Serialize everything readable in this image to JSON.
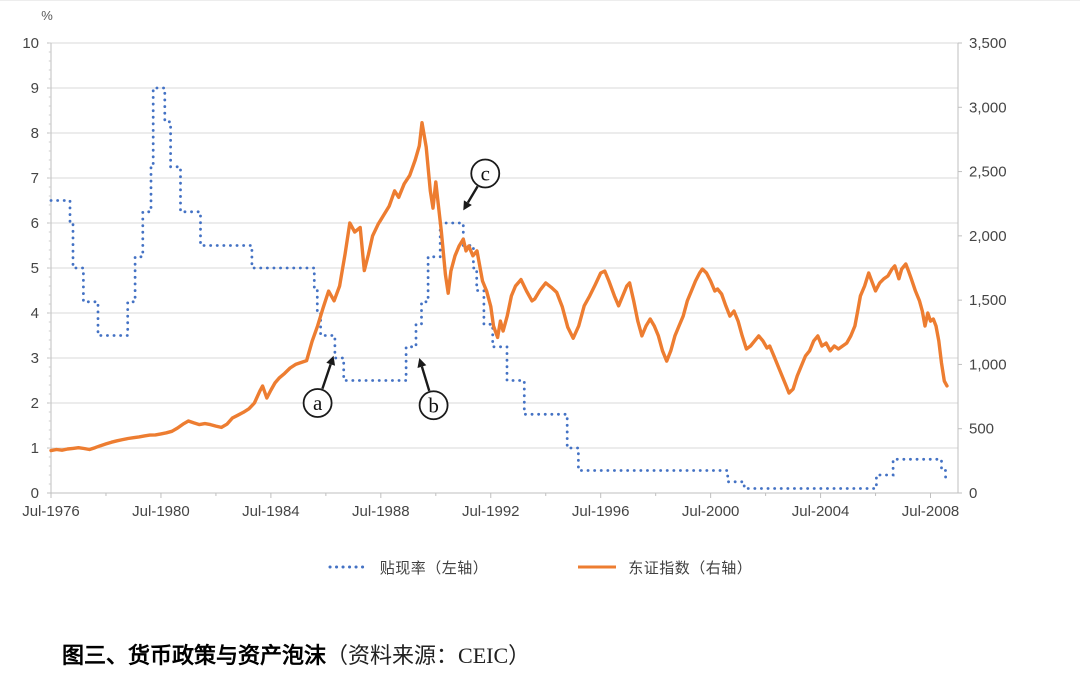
{
  "caption": {
    "title": "图三、货币政策与资产泡沫",
    "source": "（资料来源：CEIC）"
  },
  "legend": {
    "items": [
      {
        "label": "贴现率（左轴）",
        "color": "#4472c4",
        "style": "dotted"
      },
      {
        "label": "东证指数（右轴）",
        "color": "#ed7d31",
        "style": "solid"
      }
    ]
  },
  "chart_data": {
    "type": "line",
    "title": "",
    "grid": {
      "show_horizontal": true,
      "color": "#d9d9d9",
      "axis_color": "#bfbfbf"
    },
    "text_color": "#454545",
    "x_axis": {
      "range": [
        1976.5,
        2009.5
      ],
      "tick_labels": [
        "Jul-1976",
        "Jul-1980",
        "Jul-1984",
        "Jul-1988",
        "Jul-1992",
        "Jul-1996",
        "Jul-2000",
        "Jul-2004",
        "Jul-2008"
      ],
      "tick_values": [
        1976.5,
        1980.5,
        1984.5,
        1988.5,
        1992.5,
        1996.5,
        2000.5,
        2004.5,
        2008.5
      ],
      "minor_tick_values": [
        1978.5,
        1982.5,
        1986.5,
        1990.5,
        1994.5,
        1998.5,
        2002.5,
        2006.5
      ]
    },
    "left_axis": {
      "unit_label": "%",
      "range": [
        0,
        10
      ],
      "tick_step": 1,
      "minor_tick_step": 0.2,
      "tick_labels": [
        "0",
        "1",
        "2",
        "3",
        "4",
        "5",
        "6",
        "7",
        "8",
        "9",
        "10"
      ]
    },
    "right_axis": {
      "range": [
        0,
        3500
      ],
      "tick_step": 500,
      "tick_labels": [
        "0",
        "500",
        "1,000",
        "1,500",
        "2,000",
        "2,500",
        "3,000",
        "3,500"
      ]
    },
    "series": [
      {
        "name": "贴现率（左轴）",
        "axis": "left",
        "draw": "step",
        "line_style": "dotted",
        "color": "#4472c4",
        "points": [
          [
            1976.5,
            6.5
          ],
          [
            1977.19,
            6.0
          ],
          [
            1977.3,
            5.0
          ],
          [
            1977.68,
            4.25
          ],
          [
            1978.21,
            3.5
          ],
          [
            1979.29,
            4.25
          ],
          [
            1979.56,
            5.25
          ],
          [
            1979.84,
            6.25
          ],
          [
            1980.14,
            7.25
          ],
          [
            1980.22,
            9.0
          ],
          [
            1980.64,
            8.25
          ],
          [
            1980.85,
            7.25
          ],
          [
            1981.21,
            6.25
          ],
          [
            1981.94,
            5.5
          ],
          [
            1983.81,
            5.0
          ],
          [
            1986.08,
            4.5
          ],
          [
            1986.19,
            4.0
          ],
          [
            1986.31,
            3.5
          ],
          [
            1986.83,
            3.0
          ],
          [
            1987.15,
            2.5
          ],
          [
            1989.42,
            3.25
          ],
          [
            1989.78,
            3.75
          ],
          [
            1989.98,
            4.25
          ],
          [
            1990.22,
            5.25
          ],
          [
            1990.66,
            6.0
          ],
          [
            1991.5,
            5.5
          ],
          [
            1991.87,
            5.0
          ],
          [
            1991.99,
            4.5
          ],
          [
            1992.25,
            3.75
          ],
          [
            1992.57,
            3.25
          ],
          [
            1993.09,
            2.5
          ],
          [
            1993.72,
            1.75
          ],
          [
            1995.28,
            1.0
          ],
          [
            1995.69,
            0.5
          ],
          [
            2001.12,
            0.25
          ],
          [
            2001.72,
            0.1
          ],
          [
            2006.53,
            0.4
          ],
          [
            2007.14,
            0.75
          ],
          [
            2008.9,
            0.5
          ],
          [
            2009.05,
            0.3
          ],
          [
            2009.15,
            0.3
          ]
        ]
      },
      {
        "name": "东证指数（右轴）",
        "axis": "right",
        "draw": "line",
        "line_style": "solid",
        "color": "#ed7d31",
        "points": [
          [
            1976.5,
            330
          ],
          [
            1976.7,
            338
          ],
          [
            1976.9,
            333
          ],
          [
            1977.1,
            342
          ],
          [
            1977.3,
            347
          ],
          [
            1977.5,
            352
          ],
          [
            1977.7,
            346
          ],
          [
            1977.9,
            338
          ],
          [
            1978.1,
            352
          ],
          [
            1978.3,
            368
          ],
          [
            1978.5,
            382
          ],
          [
            1978.7,
            395
          ],
          [
            1978.9,
            406
          ],
          [
            1979.1,
            415
          ],
          [
            1979.3,
            424
          ],
          [
            1979.5,
            430
          ],
          [
            1979.7,
            436
          ],
          [
            1979.9,
            444
          ],
          [
            1980.1,
            450
          ],
          [
            1980.3,
            452
          ],
          [
            1980.5,
            460
          ],
          [
            1980.7,
            468
          ],
          [
            1980.9,
            480
          ],
          [
            1981.1,
            505
          ],
          [
            1981.3,
            535
          ],
          [
            1981.5,
            560
          ],
          [
            1981.7,
            545
          ],
          [
            1981.9,
            532
          ],
          [
            1982.1,
            540
          ],
          [
            1982.3,
            532
          ],
          [
            1982.5,
            520
          ],
          [
            1982.7,
            510
          ],
          [
            1982.9,
            535
          ],
          [
            1983.1,
            583
          ],
          [
            1983.3,
            605
          ],
          [
            1983.5,
            628
          ],
          [
            1983.7,
            655
          ],
          [
            1983.9,
            700
          ],
          [
            1984.1,
            794
          ],
          [
            1984.2,
            832
          ],
          [
            1984.35,
            739
          ],
          [
            1984.5,
            800
          ],
          [
            1984.65,
            856
          ],
          [
            1984.8,
            894
          ],
          [
            1985.0,
            930
          ],
          [
            1985.2,
            972
          ],
          [
            1985.4,
            1000
          ],
          [
            1985.6,
            1015
          ],
          [
            1985.8,
            1030
          ],
          [
            1986.0,
            1180
          ],
          [
            1986.2,
            1300
          ],
          [
            1986.4,
            1440
          ],
          [
            1986.6,
            1570
          ],
          [
            1986.8,
            1495
          ],
          [
            1987.0,
            1610
          ],
          [
            1987.2,
            1860
          ],
          [
            1987.37,
            2100
          ],
          [
            1987.55,
            2030
          ],
          [
            1987.75,
            2065
          ],
          [
            1987.9,
            1730
          ],
          [
            1988.05,
            1855
          ],
          [
            1988.2,
            2000
          ],
          [
            1988.4,
            2090
          ],
          [
            1988.6,
            2160
          ],
          [
            1988.8,
            2230
          ],
          [
            1989.0,
            2350
          ],
          [
            1989.15,
            2300
          ],
          [
            1989.35,
            2405
          ],
          [
            1989.55,
            2470
          ],
          [
            1989.75,
            2590
          ],
          [
            1989.9,
            2700
          ],
          [
            1990.0,
            2880
          ],
          [
            1990.15,
            2690
          ],
          [
            1990.3,
            2350
          ],
          [
            1990.4,
            2216
          ],
          [
            1990.5,
            2420
          ],
          [
            1990.6,
            2230
          ],
          [
            1990.7,
            2037
          ],
          [
            1990.85,
            1700
          ],
          [
            1990.95,
            1554
          ],
          [
            1991.05,
            1726
          ],
          [
            1991.2,
            1845
          ],
          [
            1991.35,
            1921
          ],
          [
            1991.5,
            1974
          ],
          [
            1991.6,
            1883
          ],
          [
            1991.7,
            1921
          ],
          [
            1991.85,
            1845
          ],
          [
            1992.0,
            1883
          ],
          [
            1992.1,
            1764
          ],
          [
            1992.2,
            1649
          ],
          [
            1992.35,
            1571
          ],
          [
            1992.5,
            1450
          ],
          [
            1992.6,
            1299
          ],
          [
            1992.75,
            1210
          ],
          [
            1992.85,
            1337
          ],
          [
            1992.95,
            1260
          ],
          [
            1993.1,
            1376
          ],
          [
            1993.25,
            1533
          ],
          [
            1993.4,
            1610
          ],
          [
            1993.6,
            1660
          ],
          [
            1993.8,
            1571
          ],
          [
            1994.0,
            1494
          ],
          [
            1994.1,
            1509
          ],
          [
            1994.3,
            1580
          ],
          [
            1994.5,
            1634
          ],
          [
            1994.7,
            1600
          ],
          [
            1994.9,
            1560
          ],
          [
            1995.1,
            1450
          ],
          [
            1995.3,
            1290
          ],
          [
            1995.5,
            1204
          ],
          [
            1995.7,
            1300
          ],
          [
            1995.9,
            1456
          ],
          [
            1996.1,
            1533
          ],
          [
            1996.3,
            1620
          ],
          [
            1996.5,
            1711
          ],
          [
            1996.65,
            1726
          ],
          [
            1996.8,
            1649
          ],
          [
            1997.0,
            1533
          ],
          [
            1997.15,
            1456
          ],
          [
            1997.3,
            1533
          ],
          [
            1997.45,
            1610
          ],
          [
            1997.55,
            1634
          ],
          [
            1997.7,
            1494
          ],
          [
            1997.85,
            1337
          ],
          [
            1998.0,
            1222
          ],
          [
            1998.15,
            1299
          ],
          [
            1998.3,
            1353
          ],
          [
            1998.45,
            1299
          ],
          [
            1998.6,
            1222
          ],
          [
            1998.75,
            1106
          ],
          [
            1998.9,
            1026
          ],
          [
            1999.05,
            1106
          ],
          [
            1999.2,
            1222
          ],
          [
            1999.35,
            1299
          ],
          [
            1999.5,
            1376
          ],
          [
            1999.65,
            1494
          ],
          [
            1999.8,
            1571
          ],
          [
            1999.95,
            1649
          ],
          [
            2000.1,
            1711
          ],
          [
            2000.2,
            1742
          ],
          [
            2000.35,
            1711
          ],
          [
            2000.5,
            1649
          ],
          [
            2000.65,
            1571
          ],
          [
            2000.75,
            1587
          ],
          [
            2000.9,
            1548
          ],
          [
            2001.05,
            1456
          ],
          [
            2001.2,
            1376
          ],
          [
            2001.35,
            1415
          ],
          [
            2001.5,
            1337
          ],
          [
            2001.65,
            1222
          ],
          [
            2001.8,
            1120
          ],
          [
            2001.95,
            1143
          ],
          [
            2002.1,
            1183
          ],
          [
            2002.25,
            1222
          ],
          [
            2002.4,
            1183
          ],
          [
            2002.55,
            1128
          ],
          [
            2002.65,
            1143
          ],
          [
            2002.8,
            1066
          ],
          [
            2002.95,
            988
          ],
          [
            2003.1,
            910
          ],
          [
            2003.25,
            832
          ],
          [
            2003.35,
            778
          ],
          [
            2003.5,
            809
          ],
          [
            2003.65,
            910
          ],
          [
            2003.8,
            988
          ],
          [
            2003.95,
            1066
          ],
          [
            2004.1,
            1106
          ],
          [
            2004.25,
            1183
          ],
          [
            2004.4,
            1222
          ],
          [
            2004.55,
            1143
          ],
          [
            2004.7,
            1166
          ],
          [
            2004.85,
            1106
          ],
          [
            2005.0,
            1143
          ],
          [
            2005.15,
            1120
          ],
          [
            2005.3,
            1143
          ],
          [
            2005.45,
            1166
          ],
          [
            2005.6,
            1222
          ],
          [
            2005.75,
            1299
          ],
          [
            2005.85,
            1415
          ],
          [
            2005.95,
            1533
          ],
          [
            2006.1,
            1610
          ],
          [
            2006.25,
            1711
          ],
          [
            2006.4,
            1626
          ],
          [
            2006.5,
            1572
          ],
          [
            2006.65,
            1634
          ],
          [
            2006.8,
            1666
          ],
          [
            2006.95,
            1688
          ],
          [
            2007.1,
            1742
          ],
          [
            2007.2,
            1766
          ],
          [
            2007.35,
            1666
          ],
          [
            2007.45,
            1742
          ],
          [
            2007.6,
            1781
          ],
          [
            2007.7,
            1727
          ],
          [
            2007.8,
            1666
          ],
          [
            2007.95,
            1572
          ],
          [
            2008.1,
            1494
          ],
          [
            2008.2,
            1415
          ],
          [
            2008.3,
            1299
          ],
          [
            2008.4,
            1400
          ],
          [
            2008.5,
            1337
          ],
          [
            2008.6,
            1353
          ],
          [
            2008.7,
            1299
          ],
          [
            2008.8,
            1183
          ],
          [
            2008.9,
            1011
          ],
          [
            2009.0,
            871
          ],
          [
            2009.1,
            833
          ]
        ]
      }
    ],
    "annotations": [
      {
        "label": "a",
        "circle_x": 1986.2,
        "circle_y": 2.0,
        "tip_x": 1986.78,
        "tip_y": 3.05
      },
      {
        "label": "b",
        "circle_x": 1990.42,
        "circle_y": 1.95,
        "tip_x": 1989.9,
        "tip_y": 3.0
      },
      {
        "label": "c",
        "circle_x": 1992.3,
        "circle_y": 7.1,
        "tip_x": 1991.5,
        "tip_y": 6.28
      }
    ]
  }
}
